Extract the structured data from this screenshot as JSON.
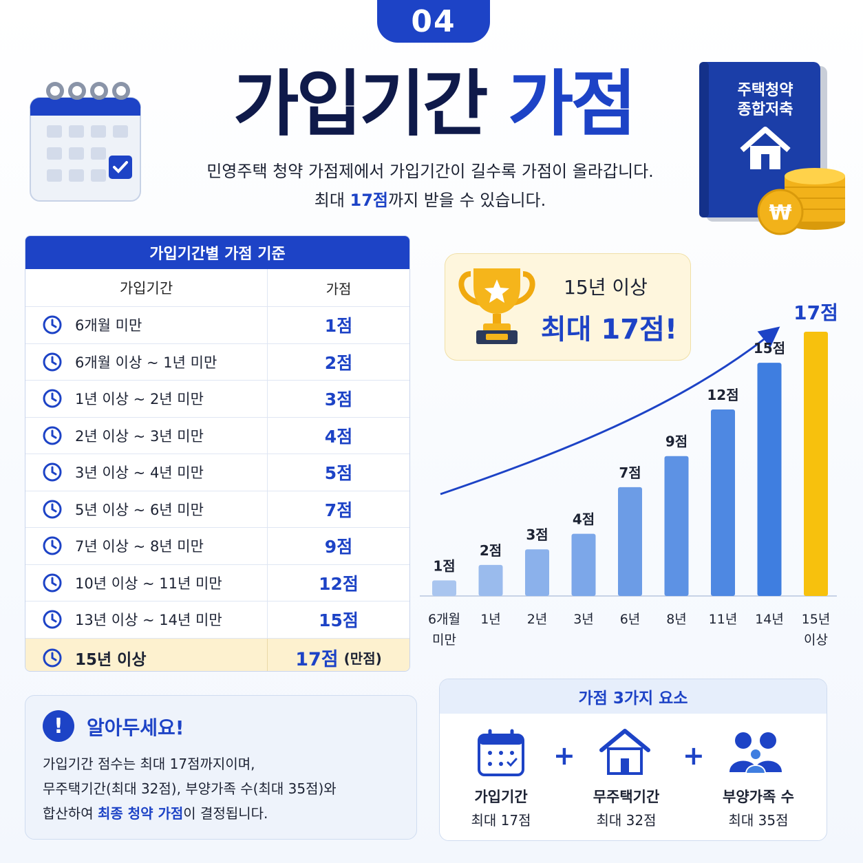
{
  "header": {
    "badge": "04",
    "title_main": "가입기간",
    "title_highlight": "가점",
    "subtitle_line1": "민영주택 청약 가점제에서 가입기간이 길수록 가점이 올라갑니다.",
    "subtitle_line2_pre": "최대 ",
    "subtitle_line2_hl": "17점",
    "subtitle_line2_post": "까지 받을 수 있습니다."
  },
  "book": {
    "line1": "주택청약",
    "line2": "종합저축",
    "coin_symbol": "₩"
  },
  "table": {
    "title": "가입기간별 가점 기준",
    "col_period": "가입기간",
    "col_score": "가점",
    "rows": [
      {
        "period": "6개월 미만",
        "score": "1점"
      },
      {
        "period": "6개월 이상 ~ 1년 미만",
        "score": "2점"
      },
      {
        "period": "1년 이상 ~ 2년 미만",
        "score": "3점"
      },
      {
        "period": "2년 이상 ~ 3년 미만",
        "score": "4점"
      },
      {
        "period": "3년 이상 ~ 4년 미만",
        "score": "5점"
      },
      {
        "period": "5년 이상 ~ 6년 미만",
        "score": "7점"
      },
      {
        "period": "7년 이상 ~ 8년 미만",
        "score": "9점"
      },
      {
        "period": "10년 이상 ~ 11년 미만",
        "score": "12점"
      },
      {
        "period": "13년 이상 ~ 14년 미만",
        "score": "15점"
      }
    ],
    "last_row": {
      "period": "15년 이상",
      "score": "17점",
      "note": "(만점)"
    }
  },
  "trophy": {
    "line1": "15년 이상",
    "line2": "최대 17점!"
  },
  "chart_data": {
    "type": "bar",
    "categories": [
      "6개월 미만",
      "1년",
      "2년",
      "3년",
      "6년",
      "8년",
      "11년",
      "14년",
      "15년 이상"
    ],
    "category_lines": [
      [
        "6개월",
        "미만"
      ],
      [
        "1년"
      ],
      [
        "2년"
      ],
      [
        "3년"
      ],
      [
        "6년"
      ],
      [
        "8년"
      ],
      [
        "11년"
      ],
      [
        "14년"
      ],
      [
        "15년",
        "이상"
      ]
    ],
    "values": [
      1,
      2,
      3,
      4,
      7,
      9,
      12,
      15,
      17
    ],
    "data_labels": [
      "1점",
      "2점",
      "3점",
      "4점",
      "7점",
      "9점",
      "12점",
      "15점",
      "17점"
    ],
    "ylim": [
      0,
      17
    ],
    "highlight_index": 8,
    "colors": {
      "bar_light": "#a9c5ef",
      "bar_dark": "#3f7ee0",
      "highlight": "#f7c10d",
      "arrow": "#1d43c6"
    }
  },
  "notice": {
    "icon": "!",
    "title": "알아두세요!",
    "line1": "가입기간 점수는 최대 17점까지이며,",
    "line2": "무주택기간(최대 32점), 부양가족 수(최대 35점)와",
    "line3_pre": "합산하여 ",
    "line3_hl": "최종 청약 가점",
    "line3_post": "이 결정됩니다."
  },
  "factors": {
    "title": "가점 3가지 요소",
    "plus": "+",
    "items": [
      {
        "label": "가입기간",
        "sub": "최대 17점",
        "icon": "calendar-icon"
      },
      {
        "label": "무주택기간",
        "sub": "최대 32점",
        "icon": "house-icon"
      },
      {
        "label": "부양가족 수",
        "sub": "최대 35점",
        "icon": "family-icon"
      }
    ]
  },
  "colors": {
    "primary": "#1d43c6",
    "gold": "#f7c10d",
    "highlight_row": "#fdf1cf"
  }
}
